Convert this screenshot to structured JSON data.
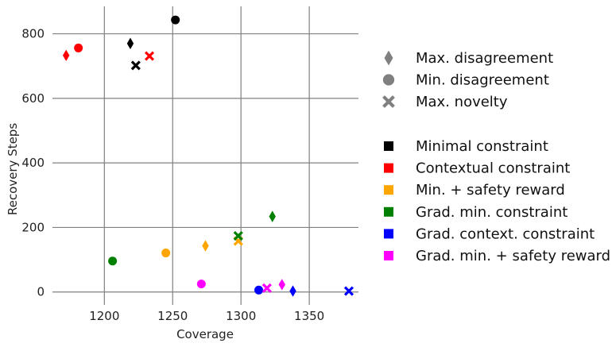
{
  "chart_data": {
    "type": "scatter",
    "xlabel": "Coverage",
    "ylabel": "Recovery Steps",
    "xlim": [
      1162,
      1386
    ],
    "ylim": [
      -40,
      885
    ],
    "xticks": [
      1200,
      1250,
      1300,
      1350
    ],
    "yticks": [
      0,
      200,
      400,
      600,
      800
    ],
    "grid": true,
    "legend_placement": "right",
    "marker_legend": [
      {
        "label": "Max. disagreement",
        "marker": "diamond"
      },
      {
        "label": "Min. disagreement",
        "marker": "circle"
      },
      {
        "label": "Max. novelty",
        "marker": "x"
      }
    ],
    "color_legend": [
      {
        "label": "Minimal constraint",
        "color": "#000000"
      },
      {
        "label": "Contextual constraint",
        "color": "#ff0000"
      },
      {
        "label": "Min. + safety reward",
        "color": "#ffa500"
      },
      {
        "label": "Grad. min. constraint",
        "color": "#008000"
      },
      {
        "label": "Grad. context. constraint",
        "color": "#0000ff"
      },
      {
        "label": "Grad. min. + safety reward",
        "color": "#ff00ff"
      }
    ],
    "points": [
      {
        "x": 1219,
        "y": 770,
        "marker": "diamond",
        "color": "#000000"
      },
      {
        "x": 1252,
        "y": 843,
        "marker": "circle",
        "color": "#000000"
      },
      {
        "x": 1223,
        "y": 702,
        "marker": "x",
        "color": "#000000"
      },
      {
        "x": 1172,
        "y": 733,
        "marker": "diamond",
        "color": "#ff0000"
      },
      {
        "x": 1181,
        "y": 756,
        "marker": "circle",
        "color": "#ff0000"
      },
      {
        "x": 1233,
        "y": 731,
        "marker": "x",
        "color": "#ff0000"
      },
      {
        "x": 1274,
        "y": 143,
        "marker": "diamond",
        "color": "#ffa500"
      },
      {
        "x": 1245,
        "y": 121,
        "marker": "circle",
        "color": "#ffa500"
      },
      {
        "x": 1298,
        "y": 158,
        "marker": "x",
        "color": "#ffa500"
      },
      {
        "x": 1323,
        "y": 234,
        "marker": "diamond",
        "color": "#008000"
      },
      {
        "x": 1206,
        "y": 96,
        "marker": "circle",
        "color": "#008000"
      },
      {
        "x": 1298,
        "y": 174,
        "marker": "x",
        "color": "#008000"
      },
      {
        "x": 1338,
        "y": 3,
        "marker": "diamond",
        "color": "#0000ff"
      },
      {
        "x": 1313,
        "y": 6,
        "marker": "circle",
        "color": "#0000ff"
      },
      {
        "x": 1379,
        "y": 3,
        "marker": "x",
        "color": "#0000ff"
      },
      {
        "x": 1330,
        "y": 23,
        "marker": "diamond",
        "color": "#ff00ff"
      },
      {
        "x": 1271,
        "y": 25,
        "marker": "circle",
        "color": "#ff00ff"
      },
      {
        "x": 1319,
        "y": 12,
        "marker": "x",
        "color": "#ff00ff"
      }
    ]
  }
}
